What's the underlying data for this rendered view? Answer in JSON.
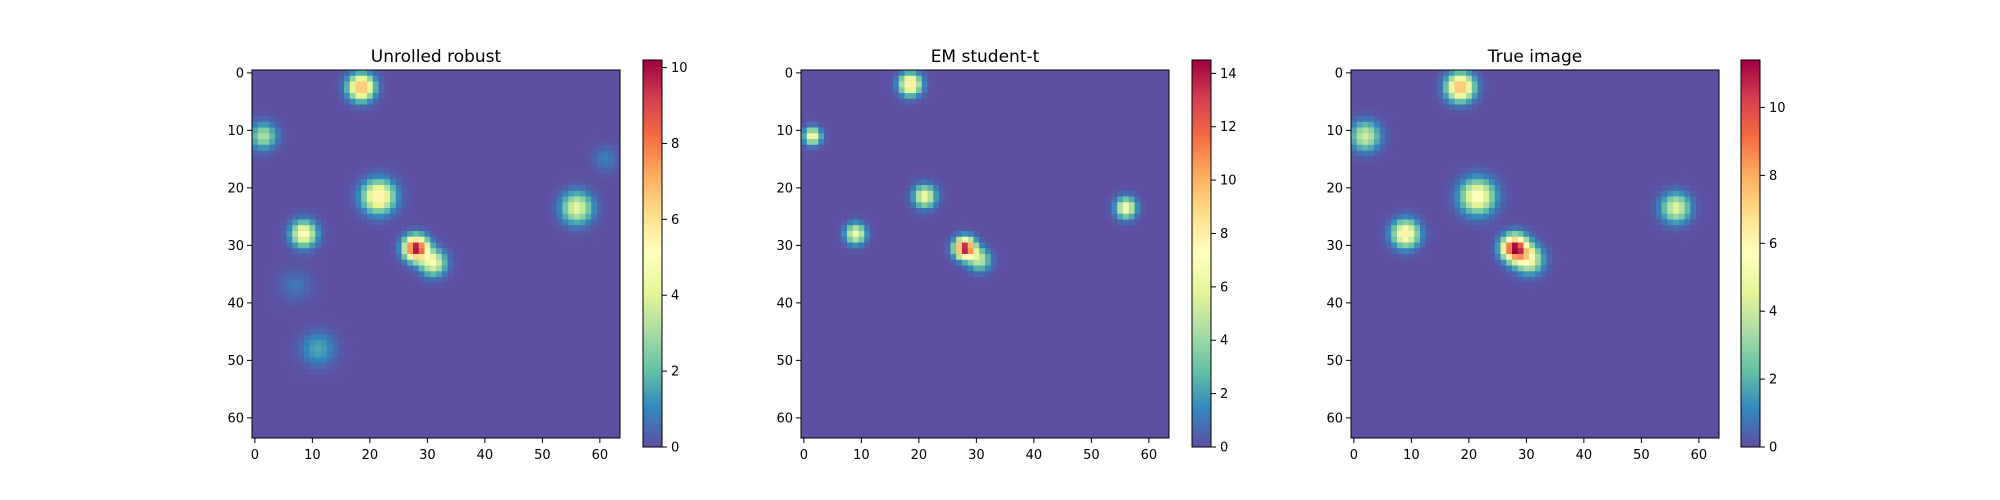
{
  "chart_data": [
    {
      "type": "heatmap",
      "title": "Unrolled robust",
      "colormap": "Spectral_r",
      "grid_size": 64,
      "xlim": [
        -0.5,
        63.5
      ],
      "ylim": [
        63.5,
        -0.5
      ],
      "xticks": [
        0,
        10,
        20,
        30,
        40,
        50,
        60
      ],
      "yticks": [
        0,
        10,
        20,
        30,
        40,
        50,
        60
      ],
      "colorbar": {
        "min": 0,
        "max": 10.2,
        "ticks": [
          0,
          2,
          4,
          6,
          8,
          10
        ]
      },
      "grid": false,
      "blobs": [
        {
          "x": 18.5,
          "y": 2.5,
          "peak": 7.2,
          "sigma": 1.5
        },
        {
          "x": 1.5,
          "y": 11,
          "peak": 3.2,
          "sigma": 1.5
        },
        {
          "x": 21.5,
          "y": 21.5,
          "peak": 5.8,
          "sigma": 1.9
        },
        {
          "x": 56,
          "y": 23.5,
          "peak": 4.3,
          "sigma": 1.8
        },
        {
          "x": 8.5,
          "y": 28,
          "peak": 5.2,
          "sigma": 1.5
        },
        {
          "x": 28,
          "y": 30.5,
          "peak": 10.2,
          "sigma": 1.4
        },
        {
          "x": 31,
          "y": 33,
          "peak": 4.6,
          "sigma": 1.5
        },
        {
          "x": 11,
          "y": 48,
          "peak": 1.6,
          "sigma": 2.0
        },
        {
          "x": 61,
          "y": 15,
          "peak": 0.9,
          "sigma": 1.5
        },
        {
          "x": 7,
          "y": 37,
          "peak": 0.7,
          "sigma": 2.0
        }
      ]
    },
    {
      "type": "heatmap",
      "title": "EM student-t",
      "colormap": "Spectral_r",
      "grid_size": 64,
      "xlim": [
        -0.5,
        63.5
      ],
      "ylim": [
        63.5,
        -0.5
      ],
      "xticks": [
        0,
        10,
        20,
        30,
        40,
        50,
        60
      ],
      "yticks": [
        0,
        10,
        20,
        30,
        40,
        50,
        60
      ],
      "colorbar": {
        "min": 0,
        "max": 14.5,
        "ticks": [
          0,
          2,
          4,
          6,
          8,
          10,
          12,
          14
        ]
      },
      "grid": false,
      "blobs": [
        {
          "x": 18.5,
          "y": 2,
          "peak": 8.5,
          "sigma": 1.3
        },
        {
          "x": 1.5,
          "y": 11,
          "peak": 7.0,
          "sigma": 1.0
        },
        {
          "x": 21,
          "y": 21.5,
          "peak": 6.5,
          "sigma": 1.3
        },
        {
          "x": 56,
          "y": 23.5,
          "peak": 7.0,
          "sigma": 1.2
        },
        {
          "x": 9,
          "y": 28,
          "peak": 6.5,
          "sigma": 1.2
        },
        {
          "x": 28,
          "y": 30.5,
          "peak": 14.5,
          "sigma": 1.2
        },
        {
          "x": 30.5,
          "y": 32.5,
          "peak": 5.0,
          "sigma": 1.3
        }
      ]
    },
    {
      "type": "heatmap",
      "title": "True image",
      "colormap": "Spectral_r",
      "grid_size": 64,
      "xlim": [
        -0.5,
        63.5
      ],
      "ylim": [
        63.5,
        -0.5
      ],
      "xticks": [
        0,
        10,
        20,
        30,
        40,
        50,
        60
      ],
      "yticks": [
        0,
        10,
        20,
        30,
        40,
        50,
        60
      ],
      "colorbar": {
        "min": 0,
        "max": 11.4,
        "ticks": [
          0,
          2,
          4,
          6,
          8,
          10
        ]
      },
      "grid": false,
      "blobs": [
        {
          "x": 18.5,
          "y": 2.5,
          "peak": 8.0,
          "sigma": 1.6
        },
        {
          "x": 2,
          "y": 11,
          "peak": 4.2,
          "sigma": 1.7
        },
        {
          "x": 21.5,
          "y": 21.5,
          "peak": 6.0,
          "sigma": 2.0
        },
        {
          "x": 56,
          "y": 23.5,
          "peak": 4.6,
          "sigma": 1.7
        },
        {
          "x": 9,
          "y": 28,
          "peak": 6.2,
          "sigma": 1.6
        },
        {
          "x": 28,
          "y": 30.5,
          "peak": 11.4,
          "sigma": 1.5
        },
        {
          "x": 30.5,
          "y": 32.5,
          "peak": 5.0,
          "sigma": 1.6
        }
      ]
    }
  ]
}
